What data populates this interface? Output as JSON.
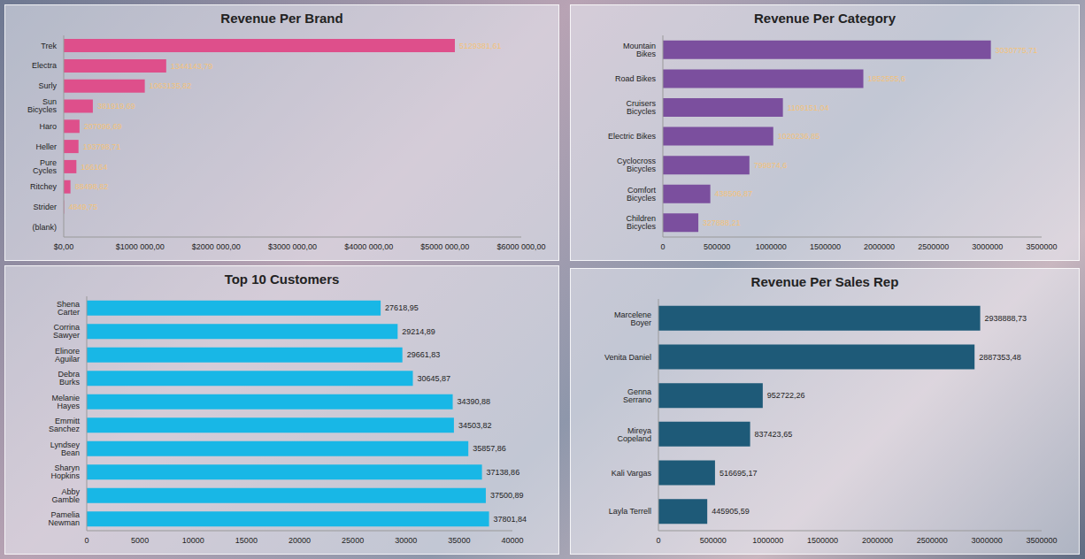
{
  "chart_data": [
    {
      "type": "bar",
      "title": "Revenue Per Brand",
      "orientation": "horizontal",
      "color": "#de4f8b",
      "data_labels": true,
      "grid": false,
      "categories": [
        "Trek",
        "Electra",
        "Surly",
        "Sun Bicycles",
        "Haro",
        "Heller",
        "Pure Cycles",
        "Ritchey",
        "Strider",
        "(blank)"
      ],
      "values": [
        5129381.61,
        1344143.79,
        1063135.82,
        381919.69,
        207096.69,
        193798.71,
        166164,
        88498.82,
        4849.75,
        null
      ],
      "value_labels": [
        "5129381,61",
        "1344143,79",
        "1063135,82",
        "381919,69",
        "207096,69",
        "193798,71",
        "166164",
        "88498,82",
        "4849,75",
        null
      ],
      "xlim": [
        0,
        6000000
      ],
      "xticks": [
        {
          "value": 0,
          "label": "$0,00"
        },
        {
          "value": 1000000,
          "label": "$1000 000,00"
        },
        {
          "value": 2000000,
          "label": "$2000 000,00"
        },
        {
          "value": 3000000,
          "label": "$3000 000,00"
        },
        {
          "value": 4000000,
          "label": "$4000 000,00"
        },
        {
          "value": 5000000,
          "label": "$5000 000,00"
        },
        {
          "value": 6000000,
          "label": "$6000 000,00"
        }
      ]
    },
    {
      "type": "bar",
      "title": "Revenue Per Category",
      "orientation": "horizontal",
      "color": "#7b4f9e",
      "data_labels": true,
      "grid": false,
      "categories": [
        "Mountain Bikes",
        "Road Bikes",
        "Cruisers Bicycles",
        "Electric Bikes",
        "Cyclocross Bicycles",
        "Comfort Bicycles",
        "Children Bicycles"
      ],
      "values": [
        3030775.71,
        1852555.6,
        1109151.04,
        1020236.85,
        799874.6,
        438506.87,
        327888.21
      ],
      "value_labels": [
        "3030775,71",
        "1852555,6",
        "1109151,04",
        "1020236,85",
        "799874,6",
        "438506,87",
        "327888,21"
      ],
      "xlim": [
        0,
        3500000
      ],
      "xticks": [
        0,
        500000,
        1000000,
        1500000,
        2000000,
        2500000,
        3000000,
        3500000
      ]
    },
    {
      "type": "bar",
      "title": "Top 10 Customers",
      "orientation": "horizontal",
      "color": "#18b7e6",
      "data_labels": true,
      "grid": false,
      "categories": [
        "Shena Carter",
        "Corrina Sawyer",
        "Elinore Aguilar",
        "Debra Burks",
        "Melanie Hayes",
        "Emmitt Sanchez",
        "Lyndsey Bean",
        "Sharyn Hopkins",
        "Abby Gamble",
        "Pamelia Newman"
      ],
      "values": [
        27618.95,
        29214.89,
        29661.83,
        30645.87,
        34390.88,
        34503.82,
        35857.86,
        37138.86,
        37500.89,
        37801.84
      ],
      "value_labels": [
        "27618,95",
        "29214,89",
        "29661,83",
        "30645,87",
        "34390,88",
        "34503,82",
        "35857,86",
        "37138,86",
        "37500,89",
        "37801,84"
      ],
      "xlim": [
        0,
        40000
      ],
      "xticks": [
        0,
        5000,
        10000,
        15000,
        20000,
        25000,
        30000,
        35000,
        40000
      ]
    },
    {
      "type": "bar",
      "title": "Revenue Per Sales Rep",
      "orientation": "horizontal",
      "color": "#1e5a78",
      "data_labels": true,
      "grid": false,
      "categories": [
        "Marcelene Boyer",
        "Venita Daniel",
        "Genna Serrano",
        "Mireya Copeland",
        "Kali Vargas",
        "Layla Terrell"
      ],
      "values": [
        2938888.73,
        2887353.48,
        952722.26,
        837423.65,
        516695.17,
        445905.59
      ],
      "value_labels": [
        "2938888,73",
        "2887353,48",
        "952722,26",
        "837423,65",
        "516695,17",
        "445905,59"
      ],
      "xlim": [
        0,
        3500000
      ],
      "xticks": [
        0,
        500000,
        1000000,
        1500000,
        2000000,
        2500000,
        3000000,
        3500000
      ]
    }
  ]
}
